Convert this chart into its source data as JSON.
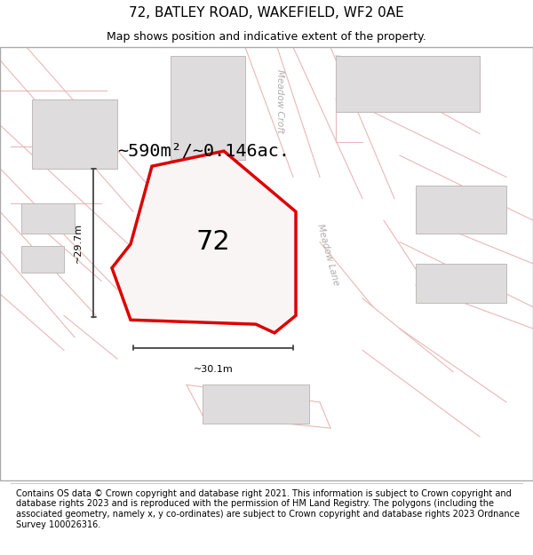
{
  "title": "72, BATLEY ROAD, WAKEFIELD, WF2 0AE",
  "subtitle": "Map shows position and indicative extent of the property.",
  "footer": "Contains OS data © Crown copyright and database right 2021. This information is subject to Crown copyright and database rights 2023 and is reproduced with the permission of HM Land Registry. The polygons (including the associated geometry, namely x, y co-ordinates) are subject to Crown copyright and database rights 2023 Ordnance Survey 100026316.",
  "area_label": "~590m²/~0.146ac.",
  "property_number": "72",
  "width_label": "~30.1m",
  "height_label": "~29.7m",
  "map_bg": "#f7f6f6",
  "road_outline_color": "#e8b8b8",
  "building_fill": "#dedcdc",
  "building_edge": "#c0baba",
  "highlight_color": "#dd0000",
  "street_label_color": "#b0acac",
  "meadow_croft_label": "Meadow Croft",
  "meadow_lane_label": "Meadow Lane",
  "title_fontsize": 11,
  "subtitle_fontsize": 9,
  "footer_fontsize": 7,
  "dim_line_color": "#444444",
  "road_bg_color": "#ffffff"
}
